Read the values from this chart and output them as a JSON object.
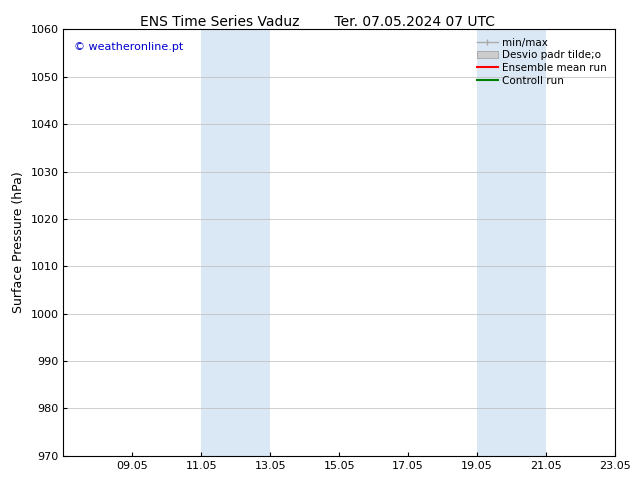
{
  "title_left": "ENS Time Series Vaduz",
  "title_right": "Ter. 07.05.2024 07 UTC",
  "ylabel": "Surface Pressure (hPa)",
  "ylim": [
    970,
    1060
  ],
  "yticks": [
    970,
    980,
    990,
    1000,
    1010,
    1020,
    1030,
    1040,
    1050,
    1060
  ],
  "xlim": [
    0,
    16
  ],
  "xtick_labels": [
    "09.05",
    "11.05",
    "13.05",
    "15.05",
    "17.05",
    "19.05",
    "21.05",
    "23.05"
  ],
  "xtick_positions": [
    2,
    4,
    6,
    8,
    10,
    12,
    14,
    16
  ],
  "watermark": "© weatheronline.pt",
  "watermark_color": "#0000cc",
  "shaded_bands": [
    {
      "x_start": 4,
      "x_end": 6,
      "color": "#dae8f5"
    },
    {
      "x_start": 12,
      "x_end": 14,
      "color": "#dae8f5"
    }
  ],
  "legend_entries": [
    {
      "label": "min/max",
      "type": "minmax",
      "color": "#aaaaaa"
    },
    {
      "label": "Desvio padr tilde;o",
      "type": "band",
      "color": "#cccccc"
    },
    {
      "label": "Ensemble mean run",
      "type": "line",
      "color": "#ff0000"
    },
    {
      "label": "Controll run",
      "type": "line",
      "color": "#008000"
    }
  ],
  "bg_color": "#ffffff",
  "grid_color": "#bbbbbb",
  "border_color": "#000000",
  "title_fontsize": 10,
  "ylabel_fontsize": 9,
  "tick_fontsize": 8,
  "watermark_fontsize": 8,
  "legend_fontsize": 7.5
}
